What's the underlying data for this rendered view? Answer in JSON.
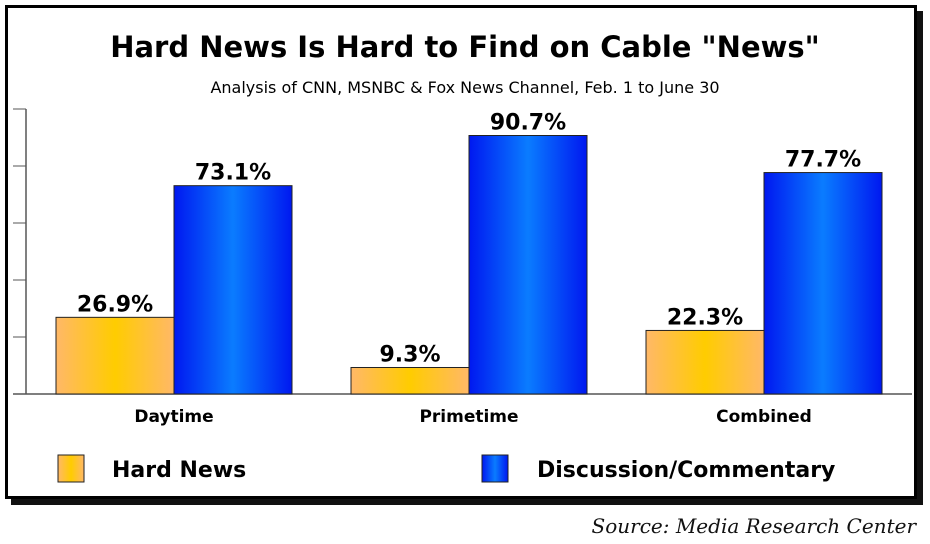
{
  "chart_data": {
    "type": "bar",
    "title": "Hard News Is Hard to Find on Cable \"News\"",
    "subtitle": "Analysis of CNN, MSNBC & Fox News Channel, Feb. 1 to June 30",
    "categories": [
      "Daytime",
      "Primetime",
      "Combined"
    ],
    "series": [
      {
        "name": "Hard News",
        "values": [
          26.9,
          9.3,
          22.3
        ],
        "labels": [
          "26.9%",
          "9.3%",
          "22.3%"
        ],
        "color": "#FFC000"
      },
      {
        "name": "Discussion/Commentary",
        "values": [
          73.1,
          90.7,
          77.7
        ],
        "labels": [
          "73.1%",
          "90.7%",
          "77.7%"
        ],
        "color": "#0022FF"
      }
    ],
    "ylim": [
      0,
      100
    ],
    "yticks": [
      0,
      20,
      40,
      60,
      80,
      100
    ],
    "ytick_labels_shown": false,
    "xlabel": "",
    "ylabel": "",
    "legend": "bottom",
    "source": "Source: Media Research Center"
  }
}
